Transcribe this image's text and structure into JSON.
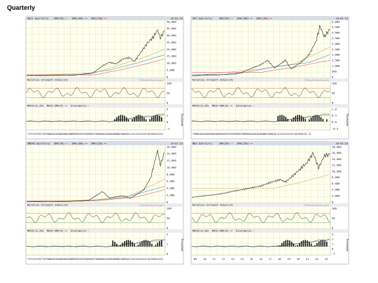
{
  "page": {
    "title": "Quarterly"
  },
  "panels": [
    {
      "header": "$DJI Quarterly",
      "legend": [
        "SMA(50)",
        "SMA(100)",
        "SMA(150)"
      ],
      "date": "10-01-23",
      "rsi_label": "Relative Strength Index(14)",
      "macd_label": "MACD(12,26)",
      "macd_legend": [
        "MACD EMA(9)",
        "Divergence"
      ],
      "watermark": "©StockCharts.com",
      "y_ticks": [
        "40,000",
        "35,000",
        "30,000",
        "25,000",
        "20,000",
        "15,000",
        "10,000",
        "5,000",
        "0"
      ],
      "rsi_ticks": [
        "100",
        "50",
        "0"
      ],
      "macd_ticks": [
        "4",
        "2",
        "0",
        "-2"
      ],
      "macd_unit": "Thousands",
      "x_labels": "72737475767778798081828384858687888990919293949596979899000102030405060708091011121314151617181920212223",
      "price": [
        [
          0,
          1000
        ],
        [
          0.15,
          950
        ],
        [
          0.3,
          1200
        ],
        [
          0.4,
          1800
        ],
        [
          0.48,
          2700
        ],
        [
          0.55,
          8000
        ],
        [
          0.6,
          10500
        ],
        [
          0.65,
          9500
        ],
        [
          0.7,
          13000
        ],
        [
          0.75,
          14000
        ],
        [
          0.78,
          11000
        ],
        [
          0.83,
          18000
        ],
        [
          0.88,
          25000
        ],
        [
          0.92,
          29000
        ],
        [
          0.95,
          34000
        ],
        [
          0.97,
          28000
        ],
        [
          1.0,
          33500
        ]
      ],
      "sma": [
        [
          [
            0,
            1000
          ],
          [
            0.5,
            3000
          ],
          [
            0.7,
            9500
          ],
          [
            0.85,
            14000
          ],
          [
            1.0,
            20000
          ]
        ],
        [
          [
            0.35,
            1100
          ],
          [
            0.6,
            5000
          ],
          [
            0.8,
            10000
          ],
          [
            1.0,
            16000
          ]
        ],
        [
          [
            0.5,
            1500
          ],
          [
            0.7,
            5500
          ],
          [
            0.85,
            9000
          ],
          [
            1.0,
            13000
          ]
        ]
      ],
      "y_max": 40000
    },
    {
      "header": "SPX Quarterly",
      "legend": [
        "SMA(50)",
        "SMA(100)",
        "SMA(150)"
      ],
      "date": "10-01-23",
      "rsi_label": "Relative Strength Index(14)",
      "macd_label": "MACD(12,26)",
      "macd_legend": [
        "MACD EMA(9)",
        "Divergence"
      ],
      "watermark": "©StockCharts.com",
      "y_ticks": [
        "5,000",
        "4,500",
        "4,000",
        "3,500",
        "3,000",
        "2,500",
        "2,000",
        "1,500",
        "1,000",
        "500",
        "0"
      ],
      "rsi_ticks": [
        "100",
        "50",
        "0"
      ],
      "macd_ticks": [
        "1.0",
        "0.5",
        "0.0",
        "-0.5"
      ],
      "macd_unit": "Thousands",
      "x_labels": "7980818283848586878889909192939495969798990001020304050607080910111213141516171819202122 23",
      "price": [
        [
          0,
          100
        ],
        [
          0.2,
          180
        ],
        [
          0.35,
          350
        ],
        [
          0.5,
          1100
        ],
        [
          0.55,
          1500
        ],
        [
          0.6,
          800
        ],
        [
          0.68,
          1500
        ],
        [
          0.72,
          700
        ],
        [
          0.8,
          1400
        ],
        [
          0.85,
          2000
        ],
        [
          0.9,
          3200
        ],
        [
          0.93,
          4600
        ],
        [
          0.96,
          3600
        ],
        [
          1.0,
          4300
        ]
      ],
      "sma": [
        [
          [
            0,
            110
          ],
          [
            0.5,
            700
          ],
          [
            0.75,
            1200
          ],
          [
            1.0,
            2700
          ]
        ],
        [
          [
            0.3,
            200
          ],
          [
            0.6,
            900
          ],
          [
            0.85,
            1300
          ],
          [
            1.0,
            2000
          ]
        ],
        [
          [
            0.5,
            400
          ],
          [
            0.75,
            900
          ],
          [
            1.0,
            1500
          ]
        ]
      ],
      "y_max": 5000
    },
    {
      "header": "$NDXQ Quarterly",
      "legend": [
        "SMA(50)",
        "SMA(100)",
        "SMA(150)"
      ],
      "date": "10-01-23",
      "rsi_label": "Relative Strength Index(14)",
      "macd_label": "MACD(12,26)",
      "macd_legend": [
        "MACD EMA(9)",
        "Divergence"
      ],
      "watermark": "©StockCharts.com",
      "y_ticks": [
        "16,000",
        "14,000",
        "12,000",
        "10,000",
        "8,000",
        "6,000",
        "4,000",
        "2,000",
        "0"
      ],
      "rsi_ticks": [
        "100",
        "50",
        "0"
      ],
      "macd_ticks": [
        "2",
        "1",
        "0"
      ],
      "macd_unit": "Thousands",
      "x_labels": "72737475767778798081828384858687888990919293949596979899000102030405060708091011121314151617181920212223",
      "price": [
        [
          0,
          50
        ],
        [
          0.3,
          100
        ],
        [
          0.45,
          500
        ],
        [
          0.55,
          3000
        ],
        [
          0.6,
          1200
        ],
        [
          0.7,
          1800
        ],
        [
          0.75,
          1000
        ],
        [
          0.85,
          3500
        ],
        [
          0.9,
          7000
        ],
        [
          0.95,
          15000
        ],
        [
          0.97,
          10500
        ],
        [
          1.0,
          14500
        ]
      ],
      "sma": [
        [
          [
            0,
            60
          ],
          [
            0.5,
            600
          ],
          [
            0.75,
            1800
          ],
          [
            1.0,
            6500
          ]
        ],
        [
          [
            0.4,
            200
          ],
          [
            0.7,
            1200
          ],
          [
            1.0,
            4500
          ]
        ],
        [
          [
            0.5,
            300
          ],
          [
            0.8,
            1500
          ],
          [
            1.0,
            3500
          ]
        ]
      ],
      "y_max": 16000
    },
    {
      "header": "NDX Quarterly",
      "legend": [
        "SMA(50)",
        "SMA(150)"
      ],
      "date": "10-01-23",
      "rsi_label": "Relative Strength Index(14)",
      "macd_label": "MACD(12,26)",
      "macd_legend": [
        "MACD EMA(9)",
        "Divergence"
      ],
      "watermark": "©StockCharts.com",
      "y_ticks": [
        "18,000",
        "16,000",
        "14,000",
        "12,000",
        "10,000",
        "8,000",
        "6,000",
        "4,000",
        "2,000",
        "0"
      ],
      "rsi_ticks": [
        "100",
        "50",
        "0"
      ],
      "macd_ticks": [
        "3",
        "2",
        "1",
        "0",
        "-1"
      ],
      "macd_unit": "Thousands",
      "x_labels": [
        "09",
        "10",
        "11",
        "12",
        "13",
        "14",
        "15",
        "16",
        "17",
        "18",
        "19",
        "20",
        "21",
        "22",
        "23"
      ],
      "price": [
        [
          0,
          1500
        ],
        [
          0.07,
          1900
        ],
        [
          0.15,
          2300
        ],
        [
          0.22,
          2700
        ],
        [
          0.3,
          3500
        ],
        [
          0.4,
          4300
        ],
        [
          0.5,
          5200
        ],
        [
          0.58,
          6500
        ],
        [
          0.64,
          7300
        ],
        [
          0.68,
          6500
        ],
        [
          0.72,
          8000
        ],
        [
          0.78,
          10500
        ],
        [
          0.84,
          13000
        ],
        [
          0.88,
          16000
        ],
        [
          0.92,
          11000
        ],
        [
          0.96,
          15000
        ],
        [
          1.0,
          15500
        ]
      ],
      "sma": [
        [
          [
            0.6,
            4500
          ],
          [
            0.8,
            6500
          ],
          [
            1.0,
            9000
          ]
        ]
      ],
      "y_max": 18000
    }
  ]
}
